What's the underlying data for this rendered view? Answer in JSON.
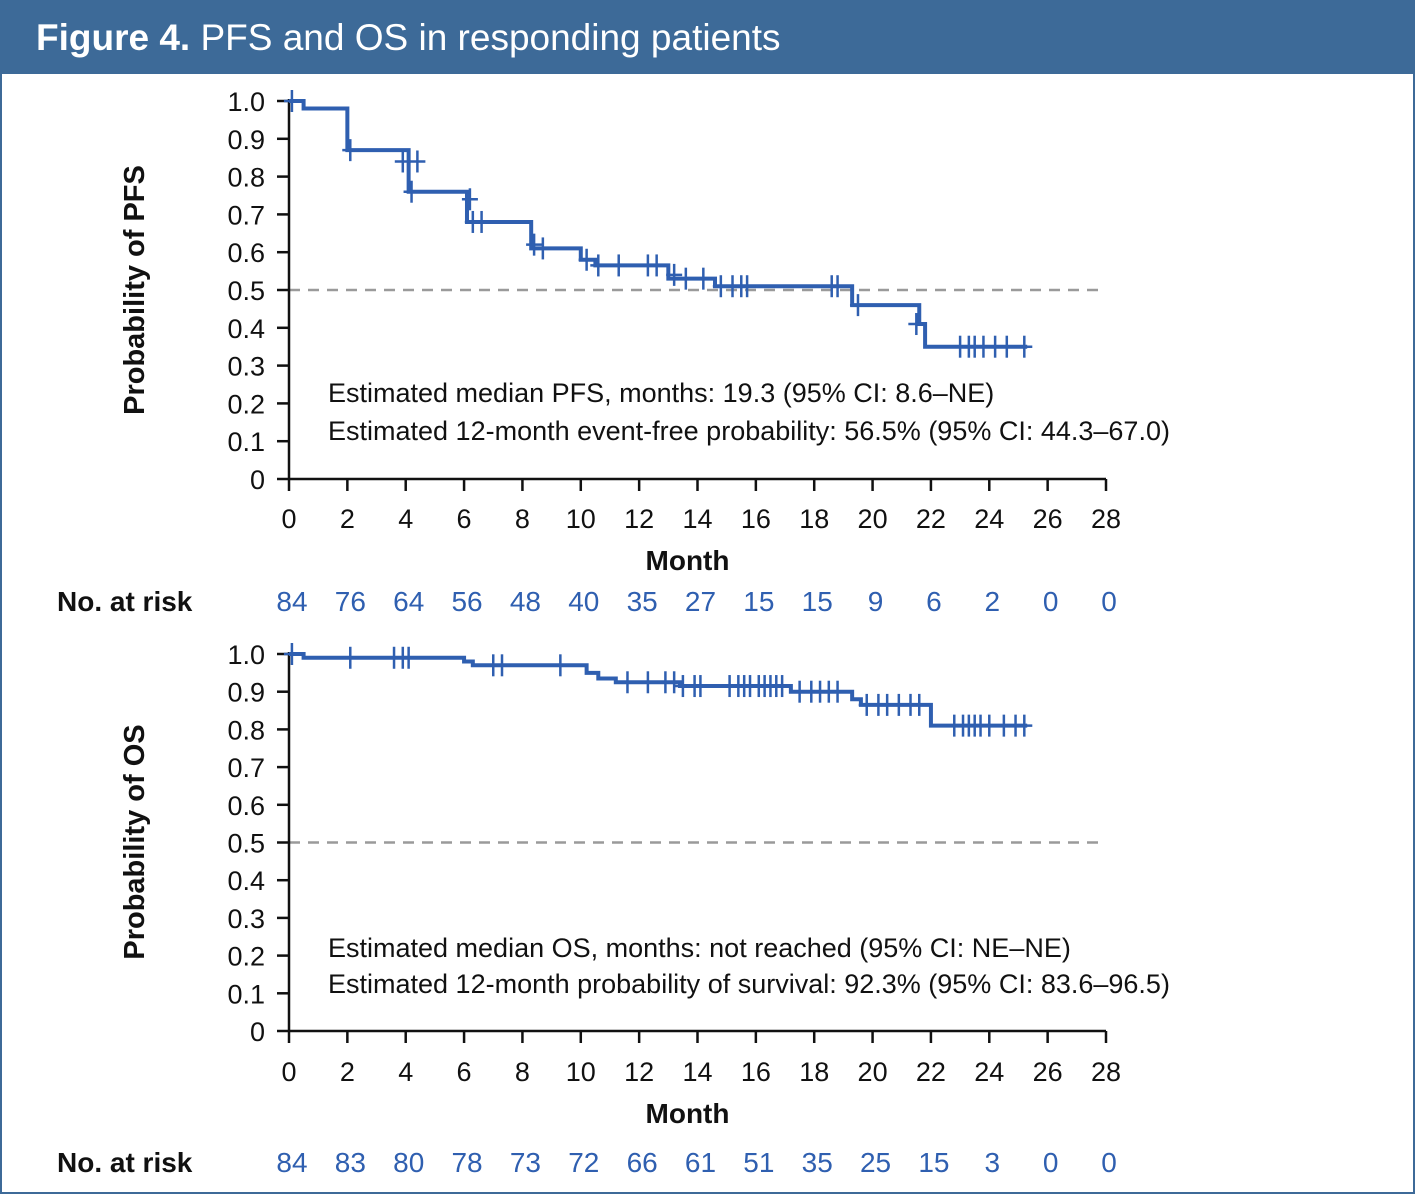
{
  "header": {
    "figure_label": "Figure 4.",
    "title": "PFS and OS in responding patients"
  },
  "colors": {
    "header_bg": "#3d6a98",
    "curve": "#2f5fb0",
    "risk_text": "#2f5fb0",
    "reference_line": "#9a9a9a",
    "axis": "#111111"
  },
  "chart_data": [
    {
      "type": "line",
      "subtype": "kaplan-meier",
      "xlabel": "Month",
      "ylabel": "Probability of PFS",
      "xlim": [
        0,
        28
      ],
      "ylim": [
        0,
        1
      ],
      "xticks": [
        0,
        2,
        4,
        6,
        8,
        10,
        12,
        14,
        16,
        18,
        20,
        22,
        24,
        26,
        28
      ],
      "yticks": [
        "0",
        "0.1",
        "0.2",
        "0.3",
        "0.4",
        "0.5",
        "0.6",
        "0.7",
        "0.8",
        "0.9",
        "1.0"
      ],
      "reference_line_y": 0.5,
      "annotations": [
        "Estimated median PFS, months: 19.3 (95% CI: 8.6–NE)",
        "Estimated 12-month event-free probability: 56.5% (95% CI: 44.3–67.0)"
      ],
      "steps": [
        [
          0,
          1.0
        ],
        [
          0.5,
          0.98
        ],
        [
          2.0,
          0.87
        ],
        [
          4.1,
          0.76
        ],
        [
          6.1,
          0.68
        ],
        [
          8.3,
          0.61
        ],
        [
          10.0,
          0.58
        ],
        [
          10.5,
          0.565
        ],
        [
          13.0,
          0.53
        ],
        [
          14.6,
          0.51
        ],
        [
          19.3,
          0.46
        ],
        [
          21.6,
          0.41
        ],
        [
          21.8,
          0.35
        ],
        [
          25.3,
          0.35
        ]
      ],
      "censored": [
        [
          0.1,
          1.0
        ],
        [
          2.1,
          0.87
        ],
        [
          3.9,
          0.84
        ],
        [
          4.4,
          0.84
        ],
        [
          4.2,
          0.76
        ],
        [
          6.2,
          0.74
        ],
        [
          6.3,
          0.68
        ],
        [
          6.6,
          0.68
        ],
        [
          8.4,
          0.62
        ],
        [
          8.7,
          0.61
        ],
        [
          10.2,
          0.58
        ],
        [
          10.6,
          0.565
        ],
        [
          11.3,
          0.565
        ],
        [
          12.3,
          0.565
        ],
        [
          12.6,
          0.565
        ],
        [
          13.2,
          0.54
        ],
        [
          13.6,
          0.53
        ],
        [
          14.2,
          0.53
        ],
        [
          14.8,
          0.51
        ],
        [
          15.2,
          0.51
        ],
        [
          15.5,
          0.51
        ],
        [
          15.7,
          0.51
        ],
        [
          18.6,
          0.51
        ],
        [
          18.8,
          0.51
        ],
        [
          19.5,
          0.46
        ],
        [
          21.5,
          0.41
        ],
        [
          23.0,
          0.35
        ],
        [
          23.3,
          0.35
        ],
        [
          23.5,
          0.35
        ],
        [
          23.8,
          0.35
        ],
        [
          24.2,
          0.35
        ],
        [
          24.6,
          0.35
        ],
        [
          25.2,
          0.35
        ]
      ],
      "at_risk": {
        "label": "No. at risk",
        "values": [
          "84",
          "76",
          "64",
          "56",
          "48",
          "40",
          "35",
          "27",
          "15",
          "15",
          "9",
          "6",
          "2",
          "0",
          "0"
        ]
      }
    },
    {
      "type": "line",
      "subtype": "kaplan-meier",
      "xlabel": "Month",
      "ylabel": "Probability of OS",
      "xlim": [
        0,
        28
      ],
      "ylim": [
        0,
        1
      ],
      "xticks": [
        0,
        2,
        4,
        6,
        8,
        10,
        12,
        14,
        16,
        18,
        20,
        22,
        24,
        26,
        28
      ],
      "yticks": [
        "0",
        "0.1",
        "0.2",
        "0.3",
        "0.4",
        "0.5",
        "0.6",
        "0.7",
        "0.8",
        "0.9",
        "1.0"
      ],
      "reference_line_y": 0.5,
      "annotations": [
        "Estimated median OS, months: not reached (95% CI: NE–NE)",
        "Estimated 12-month probability of survival: 92.3% (95% CI: 83.6–96.5)"
      ],
      "steps": [
        [
          0,
          1.0
        ],
        [
          0.5,
          0.99
        ],
        [
          6.0,
          0.98
        ],
        [
          6.3,
          0.97
        ],
        [
          10.2,
          0.95
        ],
        [
          10.6,
          0.935
        ],
        [
          11.2,
          0.925
        ],
        [
          13.4,
          0.915
        ],
        [
          17.2,
          0.9
        ],
        [
          19.3,
          0.88
        ],
        [
          19.6,
          0.865
        ],
        [
          22.0,
          0.81
        ],
        [
          25.3,
          0.81
        ]
      ],
      "censored": [
        [
          0.1,
          1.0
        ],
        [
          2.1,
          0.99
        ],
        [
          3.6,
          0.99
        ],
        [
          3.9,
          0.99
        ],
        [
          4.1,
          0.99
        ],
        [
          7.0,
          0.97
        ],
        [
          7.3,
          0.97
        ],
        [
          9.3,
          0.97
        ],
        [
          11.6,
          0.925
        ],
        [
          12.3,
          0.925
        ],
        [
          12.9,
          0.925
        ],
        [
          13.2,
          0.925
        ],
        [
          13.5,
          0.915
        ],
        [
          13.9,
          0.915
        ],
        [
          14.1,
          0.915
        ],
        [
          15.1,
          0.915
        ],
        [
          15.4,
          0.915
        ],
        [
          15.6,
          0.915
        ],
        [
          15.8,
          0.915
        ],
        [
          16.1,
          0.915
        ],
        [
          16.3,
          0.915
        ],
        [
          16.5,
          0.915
        ],
        [
          16.7,
          0.915
        ],
        [
          16.9,
          0.915
        ],
        [
          17.5,
          0.9
        ],
        [
          17.9,
          0.9
        ],
        [
          18.2,
          0.9
        ],
        [
          18.5,
          0.9
        ],
        [
          18.8,
          0.9
        ],
        [
          19.8,
          0.865
        ],
        [
          20.2,
          0.865
        ],
        [
          20.5,
          0.865
        ],
        [
          20.9,
          0.865
        ],
        [
          21.3,
          0.865
        ],
        [
          21.6,
          0.865
        ],
        [
          22.8,
          0.81
        ],
        [
          23.1,
          0.81
        ],
        [
          23.3,
          0.81
        ],
        [
          23.5,
          0.81
        ],
        [
          23.7,
          0.81
        ],
        [
          24.0,
          0.81
        ],
        [
          24.5,
          0.81
        ],
        [
          24.9,
          0.81
        ],
        [
          25.2,
          0.81
        ]
      ],
      "at_risk": {
        "label": "No. at risk",
        "values": [
          "84",
          "83",
          "80",
          "78",
          "73",
          "72",
          "66",
          "61",
          "51",
          "35",
          "25",
          "15",
          "3",
          "0",
          "0"
        ]
      }
    }
  ]
}
